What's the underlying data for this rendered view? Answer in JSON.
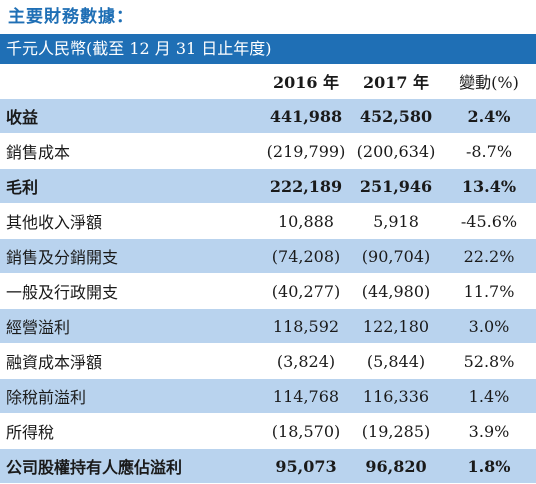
{
  "heading": "主要財務數據：",
  "unit_banner": "千元人民幣(截至 12 月 31 日止年度)",
  "columns": {
    "y2016": "2016 年",
    "y2017": "2017 年",
    "change": "變動(%)"
  },
  "rows": [
    {
      "label": "收益",
      "v2016": "441,988",
      "v2017": "452,580",
      "change": "2.4%",
      "bold": true,
      "shaded": true
    },
    {
      "label": "銷售成本",
      "v2016": "(219,799)",
      "v2017": "(200,634)",
      "change": "-8.7%",
      "bold": false,
      "shaded": false
    },
    {
      "label": "毛利",
      "v2016": "222,189",
      "v2017": "251,946",
      "change": "13.4%",
      "bold": true,
      "shaded": true
    },
    {
      "label": "其他收入淨額",
      "v2016": "10,888",
      "v2017": "5,918",
      "change": "-45.6%",
      "bold": false,
      "shaded": false
    },
    {
      "label": "銷售及分銷開支",
      "v2016": "(74,208)",
      "v2017": "(90,704)",
      "change": "22.2%",
      "bold": false,
      "shaded": true
    },
    {
      "label": "一般及行政開支",
      "v2016": "(40,277)",
      "v2017": "(44,980)",
      "change": "11.7%",
      "bold": false,
      "shaded": false
    },
    {
      "label": "經營溢利",
      "v2016": "118,592",
      "v2017": "122,180",
      "change": "3.0%",
      "bold": false,
      "shaded": true
    },
    {
      "label": "融資成本淨額",
      "v2016": "(3,824)",
      "v2017": "(5,844)",
      "change": "52.8%",
      "bold": false,
      "shaded": false
    },
    {
      "label": "除稅前溢利",
      "v2016": "114,768",
      "v2017": "116,336",
      "change": "1.4%",
      "bold": false,
      "shaded": true
    },
    {
      "label": "所得稅",
      "v2016": "(18,570)",
      "v2017": "(19,285)",
      "change": "3.9%",
      "bold": false,
      "shaded": false
    },
    {
      "label": "公司股權持有人應佔溢利",
      "v2016": "95,073",
      "v2017": "96,820",
      "change": "1.8%",
      "bold": true,
      "shaded": true
    }
  ],
  "colors": {
    "accent": "#1f6fb5",
    "row_shade": "#b9d3ee"
  }
}
